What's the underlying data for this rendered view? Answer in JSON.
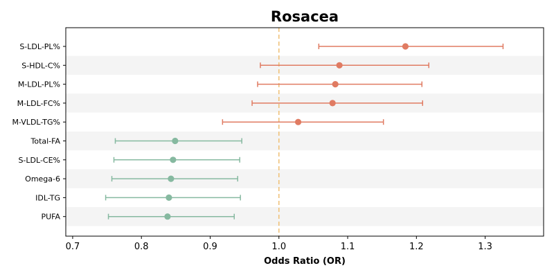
{
  "chart_data": {
    "type": "forest",
    "title": "Rosacea",
    "xlabel": "Odds Ratio (OR)",
    "xlim": [
      0.69,
      1.385
    ],
    "xticks": [
      0.7,
      0.8,
      0.9,
      1.0,
      1.1,
      1.2,
      1.3
    ],
    "xtick_labels": [
      "0.7",
      "0.8",
      "0.9",
      "1.0",
      "1.1",
      "1.2",
      "1.3"
    ],
    "reference_line": 1.0,
    "reference_color": "#f0c27a",
    "risk_color": "#e07b62",
    "protective_color": "#86b9a0",
    "band_color": "#f4f4f4",
    "grid": false,
    "rows": [
      {
        "label": "S-LDL-PL%",
        "or": 1.184,
        "lower": 1.058,
        "upper": 1.326
      },
      {
        "label": "S-HDL-C%",
        "or": 1.088,
        "lower": 0.973,
        "upper": 1.218
      },
      {
        "label": "M-LDL-PL%",
        "or": 1.082,
        "lower": 0.969,
        "upper": 1.208
      },
      {
        "label": "M-LDL-FC%",
        "or": 1.078,
        "lower": 0.961,
        "upper": 1.209
      },
      {
        "label": "M-VLDL-TG%",
        "or": 1.028,
        "lower": 0.918,
        "upper": 1.152
      },
      {
        "label": "Total-FA",
        "or": 0.849,
        "lower": 0.762,
        "upper": 0.946
      },
      {
        "label": "S-LDL-CE%",
        "or": 0.846,
        "lower": 0.76,
        "upper": 0.943
      },
      {
        "label": "Omega-6",
        "or": 0.843,
        "lower": 0.757,
        "upper": 0.94
      },
      {
        "label": "IDL-TG",
        "or": 0.84,
        "lower": 0.748,
        "upper": 0.944
      },
      {
        "label": "PUFA",
        "or": 0.838,
        "lower": 0.752,
        "upper": 0.935
      }
    ]
  }
}
